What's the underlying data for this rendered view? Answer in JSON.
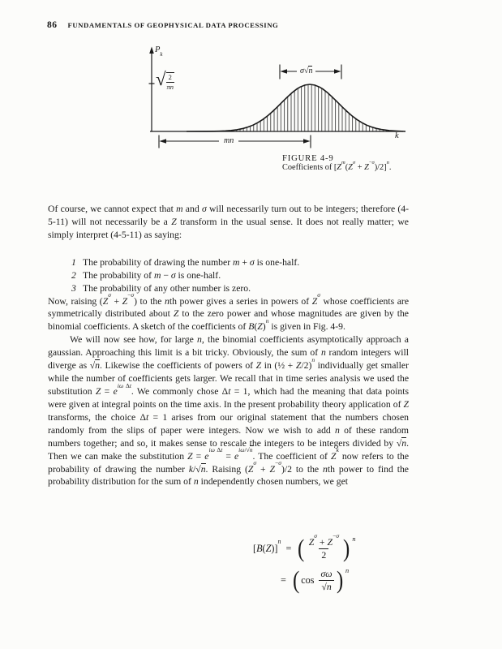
{
  "header": {
    "page_number": "86",
    "running_title": "FUNDAMENTALS OF GEOPHYSICAL DATA PROCESSING"
  },
  "figure": {
    "y_axis_label": "<i>P</i><sub><i>k</i></sub>",
    "y_tick_radical_num": "2",
    "y_tick_radical_den": "<i>πn</i>",
    "sigma_span_label": "<i>σ</i>√<span class=ov><i>n</i></span>",
    "mean_span_label": "<i>mn</i>",
    "x_axis_label": "<i>k</i>",
    "caption_title": "FIGURE 4-9",
    "caption_body": "Coefficients of [<i>Z</i><sup><i>m</i></sup>(<i>Z</i><sup><i>σ</i></sup> + <i>Z</i><sup>−<i>σ</i></sup>)/2]<sup><i>n</i></sup>."
  },
  "body": {
    "para1": "Of course, we cannot expect that <i>m</i> and <i>σ</i> will necessarily turn out to be integers; therefore (4-5-11) will not necessarily be a <i>Z</i> transform in the usual sense.  It does not really matter; we simply interpret (4-5-11) as saying:",
    "list": [
      {
        "num": "1",
        "text": "The probability of drawing the number <i>m</i> + <i>σ</i> is one-half."
      },
      {
        "num": "2",
        "text": "The probability of <i>m</i> − <i>σ</i> is one-half."
      },
      {
        "num": "3",
        "text": "The probability of any other number is zero."
      }
    ],
    "para2": "Now, raising (<i>Z</i><sup><i>σ</i></sup> + <i>Z</i><sup>−<i>σ</i></sup>) to the <i>n</i>th power gives a series in powers of <i>Z</i><sup><i>σ</i></sup> whose coefficients are symmetrically distributed about <i>Z</i> to the zero power and whose magnitudes are given by the binomial coefficients.  A sketch of the coefficients of <i>B</i>(<i>Z</i>)<sup><i>n</i></sup> is given in Fig. 4-9.",
    "para3": "We will now see how, for large <i>n</i>, the binomial coefficients asymptotically approach a gaussian.  Approaching this limit is a bit tricky.  Obviously, the sum of <i>n</i> random integers will diverge as √<span class=ov><i>n</i></span>.  Likewise the coefficients of powers of <i>Z</i> in (½ + <i>Z</i>/2)<sup><i>n</i></sup> individually get smaller while the number of coefficients gets larger.  We recall that in time series analysis we used the substitution <i>Z</i> = <i>e</i><sup><i>i</i><i>ω</i> Δ<i>t</i></sup>.  We commonly chose Δ<i>t</i> = 1, which had the meaning that data points were given at integral points on the time axis.  In the present probability theory application of <i>Z</i> transforms, the choice Δ<i>t</i> = 1 arises from our original statement that the numbers chosen randomly from the slips of paper were integers.  Now we wish to add <i>n</i> of these random numbers together; and so, it makes sense to rescale the integers to be integers divided by √<span class=ov><i>n</i></span>.  Then we can make the substitution <i>Z</i> = <i>e</i><sup><i>i</i><i>ω</i> Δ<i>t</i></sup> = <i>e</i><sup><i>i</i><i>ω</i>/√<span class=ov><i>n</i></span></sup>.  The coefficient of <i>Z</i><sup><i>k</i></sup> now refers to the probability of drawing the number <i>k</i>/√<span class=ov><i>n</i></span>.  Raising (<i>Z</i><sup><i>σ</i></sup> + <i>Z</i><sup>−<i>σ</i></sup>)/2 to the <i>n</i>th power to find the probability distribution for the sum of <i>n</i> independently chosen numbers, we get"
  },
  "equations": {
    "paren_open": "(",
    "paren_close": ")",
    "eq1": {
      "lhs": "[<i>B</i>(<i>Z</i>)]<sup><i>n</i></sup>",
      "rel": "=",
      "num": "<i>Z</i><sup><i>σ</i></sup> + <i>Z</i><sup>−<i>σ</i></sup>",
      "den": "2",
      "exp": "n"
    },
    "eq2": {
      "rel": "=",
      "fn": "cos",
      "num": "<i>σω</i>",
      "den": "√<span class=ov><i>n</i></span>",
      "exp": "n"
    }
  }
}
